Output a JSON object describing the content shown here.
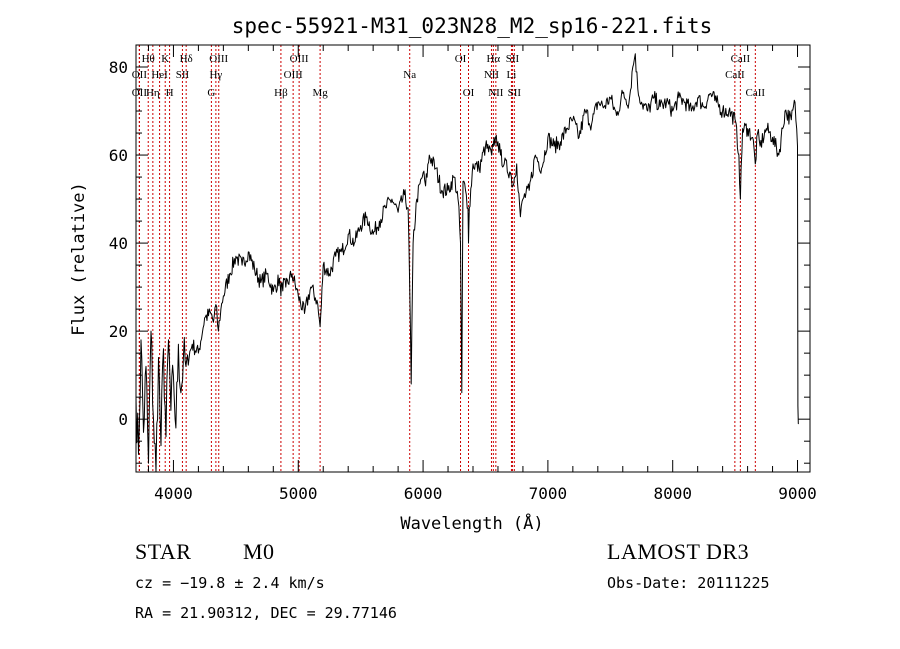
{
  "chart_data": {
    "type": "line",
    "title": "spec-55921-M31_023N28_M2_sp16-221.fits",
    "xlabel": "Wavelength (Å)",
    "ylabel": "Flux (relative)",
    "xlim": [
      3700,
      9100
    ],
    "ylim": [
      -12,
      85
    ],
    "xticks": [
      4000,
      5000,
      6000,
      7000,
      8000,
      9000
    ],
    "xtick_labels": [
      "4000",
      "5000",
      "6000",
      "7000",
      "8000",
      "9000"
    ],
    "yticks": [
      0,
      20,
      40,
      60,
      80
    ],
    "ytick_labels": [
      "0",
      "20",
      "40",
      "60",
      "80"
    ],
    "series": [
      {
        "name": "spectrum",
        "x": [
          3700,
          3720,
          3740,
          3760,
          3780,
          3800,
          3820,
          3840,
          3860,
          3880,
          3900,
          3920,
          3940,
          3960,
          3980,
          4000,
          4020,
          4040,
          4060,
          4080,
          4100,
          4150,
          4200,
          4250,
          4300,
          4320,
          4340,
          4360,
          4380,
          4400,
          4450,
          4500,
          4550,
          4600,
          4650,
          4700,
          4750,
          4800,
          4850,
          4861,
          4870,
          4900,
          4950,
          5000,
          5050,
          5100,
          5150,
          5175,
          5185,
          5200,
          5250,
          5300,
          5350,
          5400,
          5450,
          5500,
          5550,
          5600,
          5650,
          5700,
          5750,
          5800,
          5850,
          5880,
          5893,
          5905,
          5920,
          5950,
          6000,
          6020,
          6050,
          6100,
          6150,
          6200,
          6250,
          6280,
          6300,
          6310,
          6320,
          6340,
          6360,
          6364,
          6370,
          6400,
          6450,
          6500,
          6550,
          6563,
          6580,
          6600,
          6620,
          6650,
          6700,
          6720,
          6750,
          6780,
          6800,
          6850,
          6900,
          6950,
          7000,
          7050,
          7100,
          7150,
          7200,
          7250,
          7300,
          7350,
          7400,
          7450,
          7500,
          7550,
          7600,
          7650,
          7680,
          7700,
          7720,
          7750,
          7800,
          7850,
          7900,
          7950,
          8000,
          8050,
          8100,
          8150,
          8200,
          8250,
          8300,
          8350,
          8400,
          8450,
          8500,
          8530,
          8542,
          8560,
          8600,
          8640,
          8662,
          8680,
          8700,
          8750,
          8800,
          8850,
          8900,
          8950,
          8980,
          9000,
          9003,
          9006,
          9010
        ],
        "y": [
          5,
          -8,
          18,
          -3,
          12,
          -10,
          20,
          0,
          -12,
          14,
          -6,
          16,
          -4,
          18,
          2,
          10,
          -2,
          17,
          6,
          14,
          12,
          17,
          15,
          23,
          24,
          22,
          26,
          20,
          25,
          28,
          33,
          37,
          35,
          38,
          34,
          31,
          33,
          29,
          32,
          28,
          31,
          30,
          33,
          28,
          24,
          30,
          27,
          21,
          26,
          35,
          33,
          37,
          38,
          42,
          40,
          44,
          46,
          42,
          45,
          48,
          50,
          47,
          51,
          48,
          30,
          8,
          40,
          50,
          56,
          53,
          60,
          57,
          52,
          52,
          55,
          50,
          40,
          6,
          54,
          52,
          48,
          40,
          48,
          58,
          57,
          62,
          60,
          62,
          64,
          63,
          60,
          58,
          56,
          53,
          58,
          46,
          50,
          52,
          60,
          57,
          64,
          62,
          63,
          66,
          68,
          64,
          70,
          67,
          72,
          71,
          73,
          69,
          74,
          72,
          80,
          83,
          75,
          72,
          70,
          73,
          71,
          72,
          70,
          73,
          72,
          70,
          73,
          71,
          74,
          72,
          70,
          70,
          68,
          60,
          50,
          66,
          66,
          64,
          58,
          65,
          62,
          66,
          64,
          60,
          70,
          68,
          72,
          62,
          3,
          -1,
          -1
        ]
      }
    ],
    "lines": [
      {
        "name": "Hθ",
        "x": 3798,
        "row": 0
      },
      {
        "name": "OII",
        "x": 3727,
        "row": 1
      },
      {
        "name": "OII",
        "x": 3727,
        "row": 2
      },
      {
        "name": "K",
        "x": 3934,
        "row": 0
      },
      {
        "name": "HeI",
        "x": 3889,
        "row": 1
      },
      {
        "name": "Hη",
        "x": 3835,
        "row": 2
      },
      {
        "name": "Hδ",
        "x": 4102,
        "row": 0
      },
      {
        "name": "SII",
        "x": 4072,
        "row": 1
      },
      {
        "name": "H",
        "x": 3969,
        "row": 2
      },
      {
        "name": "OIII",
        "x": 4363,
        "row": 0
      },
      {
        "name": "Hγ",
        "x": 4340,
        "row": 1
      },
      {
        "name": "G",
        "x": 4304,
        "row": 2
      },
      {
        "name": "OIII",
        "x": 5007,
        "row": 0
      },
      {
        "name": "OIII",
        "x": 4959,
        "row": 1
      },
      {
        "name": "Hβ",
        "x": 4861,
        "row": 2
      },
      {
        "name": "Mg",
        "x": 5175,
        "row": 2
      },
      {
        "name": "Na",
        "x": 5893,
        "row": 1
      },
      {
        "name": "OI",
        "x": 6300,
        "row": 0
      },
      {
        "name": "OI",
        "x": 6364,
        "row": 2
      },
      {
        "name": "Hα",
        "x": 6563,
        "row": 0
      },
      {
        "name": "NII",
        "x": 6548,
        "row": 1
      },
      {
        "name": "NII",
        "x": 6583,
        "row": 2
      },
      {
        "name": "SII",
        "x": 6716,
        "row": 0
      },
      {
        "name": "Li",
        "x": 6708,
        "row": 1
      },
      {
        "name": "SII",
        "x": 6731,
        "row": 2
      },
      {
        "name": "CaII",
        "x": 8542,
        "row": 0
      },
      {
        "name": "CaII",
        "x": 8498,
        "row": 1
      },
      {
        "name": "CaII",
        "x": 8662,
        "row": 2
      }
    ],
    "line_color": "#cc0000"
  },
  "info": {
    "class": "STAR",
    "subclass": "M0",
    "survey": "LAMOST DR3",
    "cz": "cz = −19.8 ± 2.4 km/s",
    "obs_date": "Obs-Date: 20111225",
    "coords": "RA =  21.90312, DEC =  29.77146"
  }
}
